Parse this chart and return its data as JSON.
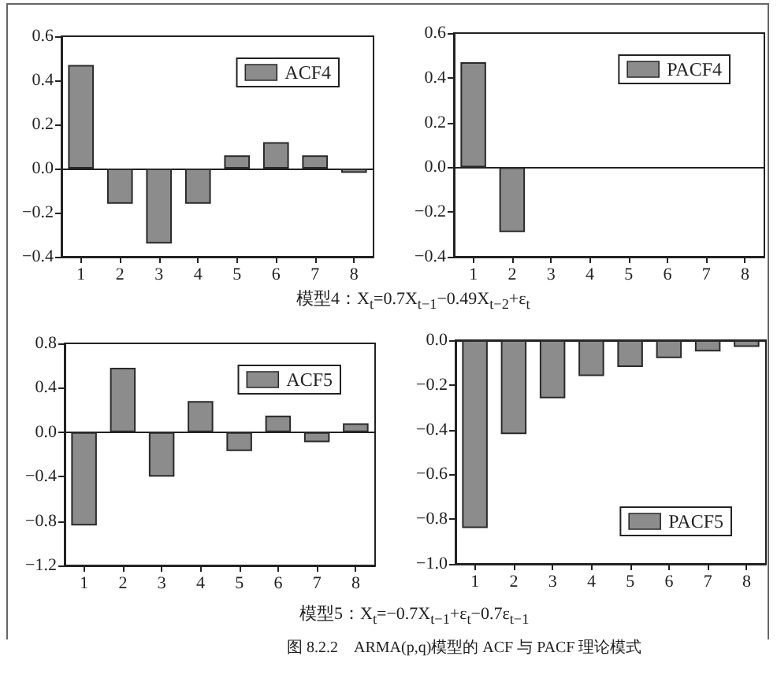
{
  "chart_data": [
    {
      "type": "bar",
      "categories": [
        "1",
        "2",
        "3",
        "4",
        "5",
        "6",
        "7",
        "8"
      ],
      "series": [
        {
          "name": "ACF4",
          "color": "#8c8c8c",
          "values": [
            0.47,
            -0.16,
            -0.34,
            -0.16,
            0.06,
            0.12,
            0.06,
            -0.02
          ]
        }
      ],
      "ylim": [
        -0.4,
        0.6
      ],
      "yticks": [
        {
          "value": -0.4,
          "label": "−0.4"
        },
        {
          "value": -0.2,
          "label": "−0.2"
        },
        {
          "value": 0,
          "label": "0.0"
        },
        {
          "value": 0.2,
          "label": "0.2"
        },
        {
          "value": 0.4,
          "label": "0.4"
        },
        {
          "value": 0.6,
          "label": "0.6"
        }
      ],
      "legend": "top right",
      "annotations": [
        "模型4：X$_{t}$=0.7X$_{t−1}$−0.49X$_{t−2}$+ε$_{t}$"
      ]
    },
    {
      "type": "bar",
      "categories": [
        "1",
        "2",
        "3",
        "4",
        "5",
        "6",
        "7",
        "8"
      ],
      "series": [
        {
          "name": "PACF4",
          "color": "#8c8c8c",
          "values": [
            0.47,
            -0.29,
            null,
            null,
            null,
            null,
            null,
            null
          ]
        }
      ],
      "ylim": [
        -0.4,
        0.6
      ],
      "yticks": [
        {
          "value": -0.4,
          "label": "−0.4"
        },
        {
          "value": -0.2,
          "label": "−0.2"
        },
        {
          "value": 0,
          "label": "0.0"
        },
        {
          "value": 0.2,
          "label": "0.2"
        },
        {
          "value": 0.4,
          "label": "0.4"
        },
        {
          "value": 0.6,
          "label": "0.6"
        }
      ],
      "legend": "top right"
    },
    {
      "type": "bar",
      "categories": [
        "1",
        "2",
        "3",
        "4",
        "5",
        "6",
        "7",
        "8"
      ],
      "series": [
        {
          "name": "ACF5",
          "color": "#8c8c8c",
          "values": [
            -0.84,
            0.58,
            -0.4,
            0.28,
            -0.17,
            0.15,
            -0.09,
            0.08
          ]
        }
      ],
      "ylim": [
        -1.2,
        0.8
      ],
      "yticks": [
        {
          "value": -1.2,
          "label": "−1.2"
        },
        {
          "value": -0.8,
          "label": "−0.8"
        },
        {
          "value": -0.4,
          "label": "−0.4"
        },
        {
          "value": 0,
          "label": "0.0"
        },
        {
          "value": 0.4,
          "label": "0.4"
        },
        {
          "value": 0.8,
          "label": "0.8"
        }
      ],
      "legend": "top right",
      "annotations": [
        "模型5：X$_{t}$=−0.7X$_{t−1}$+ε$_{t}$−0.7ε$_{t−1}$",
        "图 8.2.2　ARMA(p,q)模型的 ACF 与 PACF 理论模式"
      ]
    },
    {
      "type": "bar",
      "categories": [
        "1",
        "2",
        "3",
        "4",
        "5",
        "6",
        "7",
        "8"
      ],
      "series": [
        {
          "name": "PACF5",
          "color": "#8c8c8c",
          "values": [
            -0.84,
            -0.42,
            -0.26,
            -0.16,
            -0.12,
            -0.08,
            -0.05,
            -0.03
          ]
        }
      ],
      "ylim": [
        -1.0,
        0.0
      ],
      "yticks": [
        {
          "value": -1.0,
          "label": "−1.0"
        },
        {
          "value": -0.8,
          "label": "−0.8"
        },
        {
          "value": -0.6,
          "label": "−0.6"
        },
        {
          "value": -0.4,
          "label": "−0.4"
        },
        {
          "value": -0.2,
          "label": "−0.2"
        },
        {
          "value": 0,
          "label": "0.0"
        }
      ],
      "legend": "bottom right"
    }
  ]
}
